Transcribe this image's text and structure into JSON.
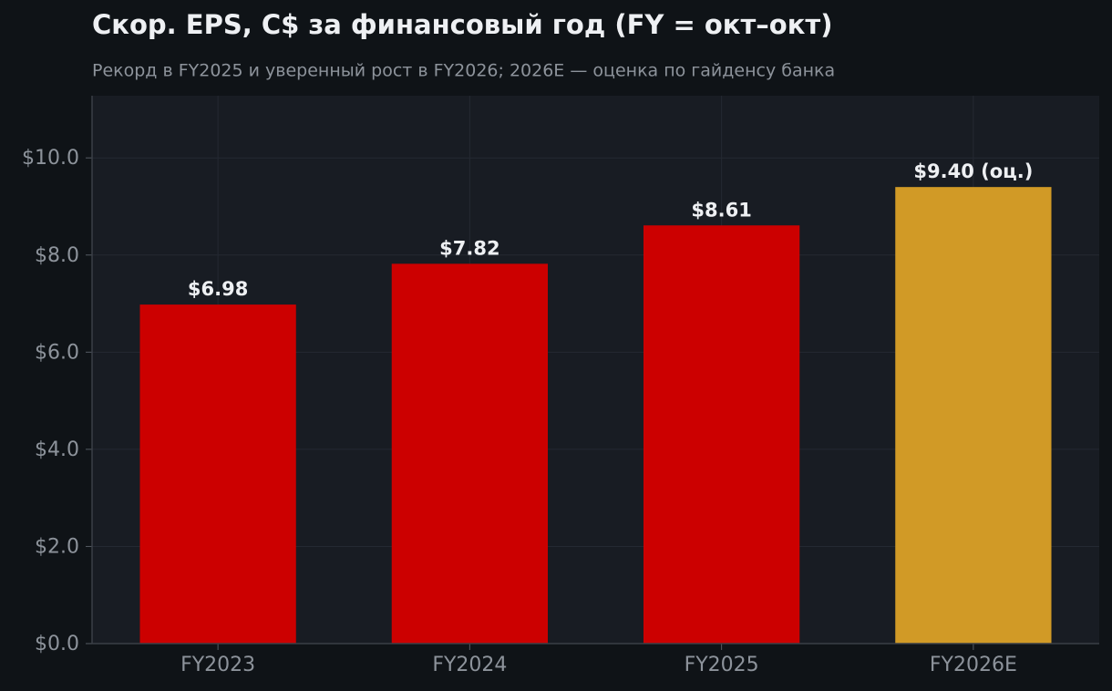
{
  "chart_data": {
    "type": "bar",
    "title": "Скор. EPS, C$ за финансовый год (FY = окт–окт)",
    "subtitle": "Рекорд в FY2025 и уверенный рост в FY2026; 2026E — оценка по гайденсу банка",
    "categories": [
      "FY2023",
      "FY2024",
      "FY2025",
      "FY2026E"
    ],
    "values": [
      6.98,
      7.82,
      8.61,
      9.4
    ],
    "value_labels": [
      "$6.98",
      "$7.82",
      "$8.61",
      "$9.40 (оц.)"
    ],
    "colors": [
      "#cc0000",
      "#cc0000",
      "#cc0000",
      "#d19a26"
    ],
    "ylim": [
      0,
      11.28
    ],
    "yticks": [
      {
        "value": 0,
        "label": "$0.0"
      },
      {
        "value": 2,
        "label": "$2.0"
      },
      {
        "value": 4,
        "label": "$4.0"
      },
      {
        "value": 6,
        "label": "$6.0"
      },
      {
        "value": 8,
        "label": "$8.0"
      },
      {
        "value": 10,
        "label": "$10.0"
      }
    ],
    "grid": true
  }
}
